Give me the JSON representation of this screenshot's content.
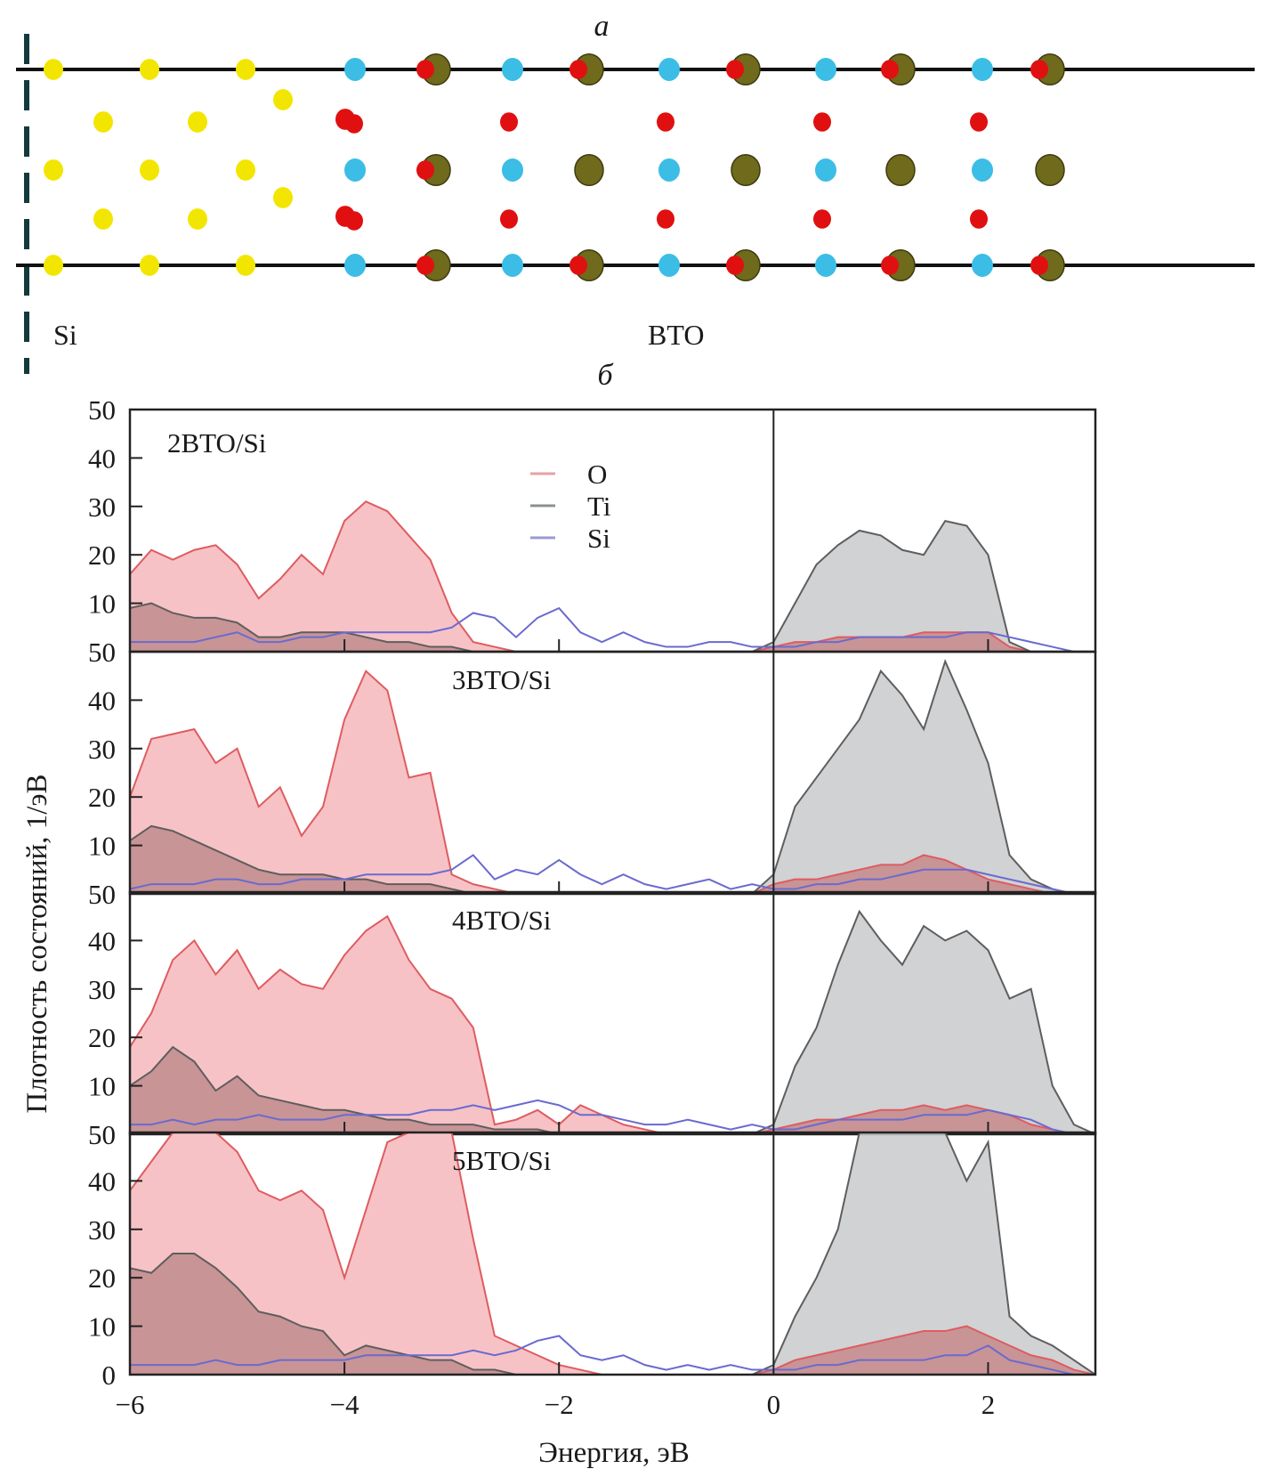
{
  "figure": {
    "panel_a_label": "а",
    "panel_b_label": "б",
    "structure": {
      "left_region_label": "Si",
      "right_region_label": "BTO",
      "atom_colors": {
        "si": "#f2e600",
        "ti": "#3bbde6",
        "o": "#e01010",
        "ba": "#6f6a1c"
      }
    }
  },
  "chart_data": {
    "type": "area",
    "title": "",
    "xlabel": "Энергия, эВ",
    "ylabel": "Плотность состояний, 1/эВ",
    "xlim": [
      -6,
      3.0
    ],
    "ylim": [
      0,
      50
    ],
    "x_ticks": [
      -6,
      -4,
      -2,
      0,
      2
    ],
    "x_tick_labels": [
      "−6",
      "−4",
      "−2",
      "0",
      "2"
    ],
    "y_ticks": [
      0,
      10,
      20,
      30,
      40,
      50
    ],
    "y_tick_labels_top_panel": [
      "50",
      "10",
      "20",
      "30",
      "40",
      "50"
    ],
    "y_tick_labels_middle_panels": [
      "50",
      "10",
      "20",
      "30",
      "40",
      "50"
    ],
    "y_tick_labels_bottom_panel": [
      "0",
      "10",
      "20",
      "30",
      "40",
      "50"
    ],
    "vertical_line_at": 0,
    "grid": false,
    "legend": {
      "placement": "top-center",
      "entries": [
        {
          "name": "O",
          "color": "#e06a6a"
        },
        {
          "name": "Ti",
          "color": "#707070"
        },
        {
          "name": "Si",
          "color": "#7070c8"
        }
      ]
    },
    "fill_colors": {
      "O": "#f7c2c6",
      "Ti": "#c8cacc",
      "overlap": "#c89496",
      "O_line": "#de5c60",
      "Ti_line": "#5e5e5e",
      "Si_line": "#6a6ad0"
    },
    "x": [
      -6.0,
      -5.8,
      -5.6,
      -5.4,
      -5.2,
      -5.0,
      -4.8,
      -4.6,
      -4.4,
      -4.2,
      -4.0,
      -3.8,
      -3.6,
      -3.4,
      -3.2,
      -3.0,
      -2.8,
      -2.6,
      -2.4,
      -2.2,
      -2.0,
      -1.8,
      -1.6,
      -1.4,
      -1.2,
      -1.0,
      -0.8,
      -0.6,
      -0.4,
      -0.2,
      0.0,
      0.2,
      0.4,
      0.6,
      0.8,
      1.0,
      1.2,
      1.4,
      1.6,
      1.8,
      2.0,
      2.2,
      2.4,
      2.6,
      2.8,
      3.0
    ],
    "panels": [
      {
        "name": "2BTO/Si",
        "series": [
          {
            "name": "O",
            "values": [
              16,
              21,
              19,
              21,
              22,
              18,
              11,
              15,
              20,
              16,
              27,
              31,
              29,
              24,
              19,
              8,
              2,
              1,
              0,
              0,
              0,
              0,
              0,
              0,
              0,
              0,
              0,
              0,
              0,
              0,
              1,
              2,
              2,
              3,
              3,
              3,
              3,
              4,
              4,
              4,
              4,
              1,
              0,
              0,
              0,
              0
            ]
          },
          {
            "name": "Ti",
            "values": [
              9,
              10,
              8,
              7,
              7,
              6,
              3,
              3,
              4,
              4,
              4,
              3,
              2,
              2,
              1,
              1,
              0,
              0,
              0,
              0,
              0,
              0,
              0,
              0,
              0,
              0,
              0,
              0,
              0,
              0,
              2,
              10,
              18,
              22,
              25,
              24,
              21,
              20,
              27,
              26,
              20,
              2,
              0,
              0,
              0,
              0
            ]
          },
          {
            "name": "Si",
            "values": [
              2,
              2,
              2,
              2,
              3,
              4,
              2,
              2,
              3,
              3,
              4,
              4,
              4,
              4,
              4,
              5,
              8,
              7,
              3,
              7,
              9,
              4,
              2,
              4,
              2,
              1,
              1,
              2,
              2,
              1,
              1,
              1,
              2,
              2,
              3,
              3,
              3,
              3,
              3,
              4,
              4,
              3,
              2,
              1,
              0,
              0
            ]
          }
        ]
      },
      {
        "name": "3BTO/Si",
        "series": [
          {
            "name": "O",
            "values": [
              20,
              32,
              33,
              34,
              27,
              30,
              18,
              22,
              12,
              18,
              36,
              46,
              42,
              24,
              25,
              4,
              2,
              1,
              0,
              0,
              0,
              0,
              0,
              0,
              0,
              0,
              0,
              0,
              0,
              0,
              2,
              3,
              3,
              4,
              5,
              6,
              6,
              8,
              7,
              5,
              3,
              2,
              1,
              0,
              0,
              0
            ]
          },
          {
            "name": "Ti",
            "values": [
              11,
              14,
              13,
              11,
              9,
              7,
              5,
              4,
              4,
              4,
              3,
              3,
              2,
              2,
              2,
              1,
              0,
              0,
              0,
              0,
              0,
              0,
              0,
              0,
              0,
              0,
              0,
              0,
              0,
              0,
              4,
              18,
              24,
              30,
              36,
              46,
              41,
              34,
              48,
              38,
              27,
              8,
              3,
              1,
              0,
              0
            ]
          },
          {
            "name": "Si",
            "values": [
              1,
              2,
              2,
              2,
              3,
              3,
              2,
              2,
              3,
              3,
              3,
              4,
              4,
              4,
              4,
              5,
              8,
              3,
              5,
              4,
              7,
              4,
              2,
              4,
              2,
              1,
              2,
              3,
              1,
              2,
              1,
              1,
              2,
              2,
              3,
              3,
              4,
              5,
              5,
              5,
              4,
              3,
              2,
              1,
              0,
              0
            ]
          }
        ]
      },
      {
        "name": "4BTO/Si",
        "series": [
          {
            "name": "O",
            "values": [
              18,
              25,
              36,
              40,
              33,
              38,
              30,
              34,
              31,
              30,
              37,
              42,
              45,
              36,
              30,
              28,
              22,
              2,
              3,
              5,
              2,
              6,
              4,
              2,
              1,
              0,
              0,
              0,
              0,
              0,
              1,
              2,
              3,
              3,
              4,
              5,
              5,
              6,
              5,
              6,
              5,
              4,
              2,
              1,
              0,
              0
            ]
          },
          {
            "name": "Ti",
            "values": [
              10,
              13,
              18,
              15,
              9,
              12,
              8,
              7,
              6,
              5,
              5,
              4,
              3,
              3,
              2,
              2,
              2,
              1,
              1,
              1,
              0,
              0,
              0,
              0,
              0,
              0,
              0,
              0,
              0,
              0,
              2,
              14,
              22,
              35,
              46,
              40,
              35,
              43,
              40,
              42,
              38,
              28,
              30,
              10,
              2,
              0
            ]
          },
          {
            "name": "Si",
            "values": [
              2,
              2,
              3,
              2,
              3,
              3,
              4,
              3,
              3,
              3,
              4,
              4,
              4,
              4,
              5,
              5,
              6,
              5,
              6,
              7,
              6,
              4,
              4,
              3,
              2,
              2,
              3,
              2,
              1,
              2,
              1,
              1,
              2,
              3,
              3,
              3,
              3,
              4,
              4,
              4,
              5,
              4,
              3,
              1,
              0,
              0
            ]
          }
        ]
      },
      {
        "name": "5BTO/Si",
        "series": [
          {
            "name": "O",
            "values": [
              38,
              44,
              50,
              50,
              50,
              46,
              38,
              36,
              38,
              34,
              20,
              34,
              48,
              50,
              50,
              50,
              28,
              8,
              6,
              4,
              2,
              1,
              0,
              0,
              0,
              0,
              0,
              0,
              0,
              0,
              1,
              3,
              4,
              5,
              6,
              7,
              8,
              9,
              9,
              10,
              8,
              6,
              4,
              3,
              1,
              0
            ]
          },
          {
            "name": "Ti",
            "values": [
              22,
              21,
              25,
              25,
              22,
              18,
              13,
              12,
              10,
              9,
              4,
              6,
              5,
              4,
              3,
              3,
              1,
              1,
              0,
              0,
              0,
              0,
              0,
              0,
              0,
              0,
              0,
              0,
              0,
              0,
              2,
              12,
              20,
              30,
              50,
              50,
              50,
              50,
              50,
              40,
              48,
              12,
              8,
              6,
              3,
              0
            ]
          },
          {
            "name": "Si",
            "values": [
              2,
              2,
              2,
              2,
              3,
              2,
              2,
              3,
              3,
              3,
              3,
              4,
              4,
              4,
              4,
              4,
              5,
              4,
              5,
              7,
              8,
              4,
              3,
              4,
              2,
              1,
              2,
              1,
              2,
              1,
              1,
              1,
              2,
              2,
              3,
              3,
              3,
              3,
              4,
              4,
              6,
              3,
              2,
              1,
              0,
              0
            ]
          }
        ]
      }
    ]
  }
}
